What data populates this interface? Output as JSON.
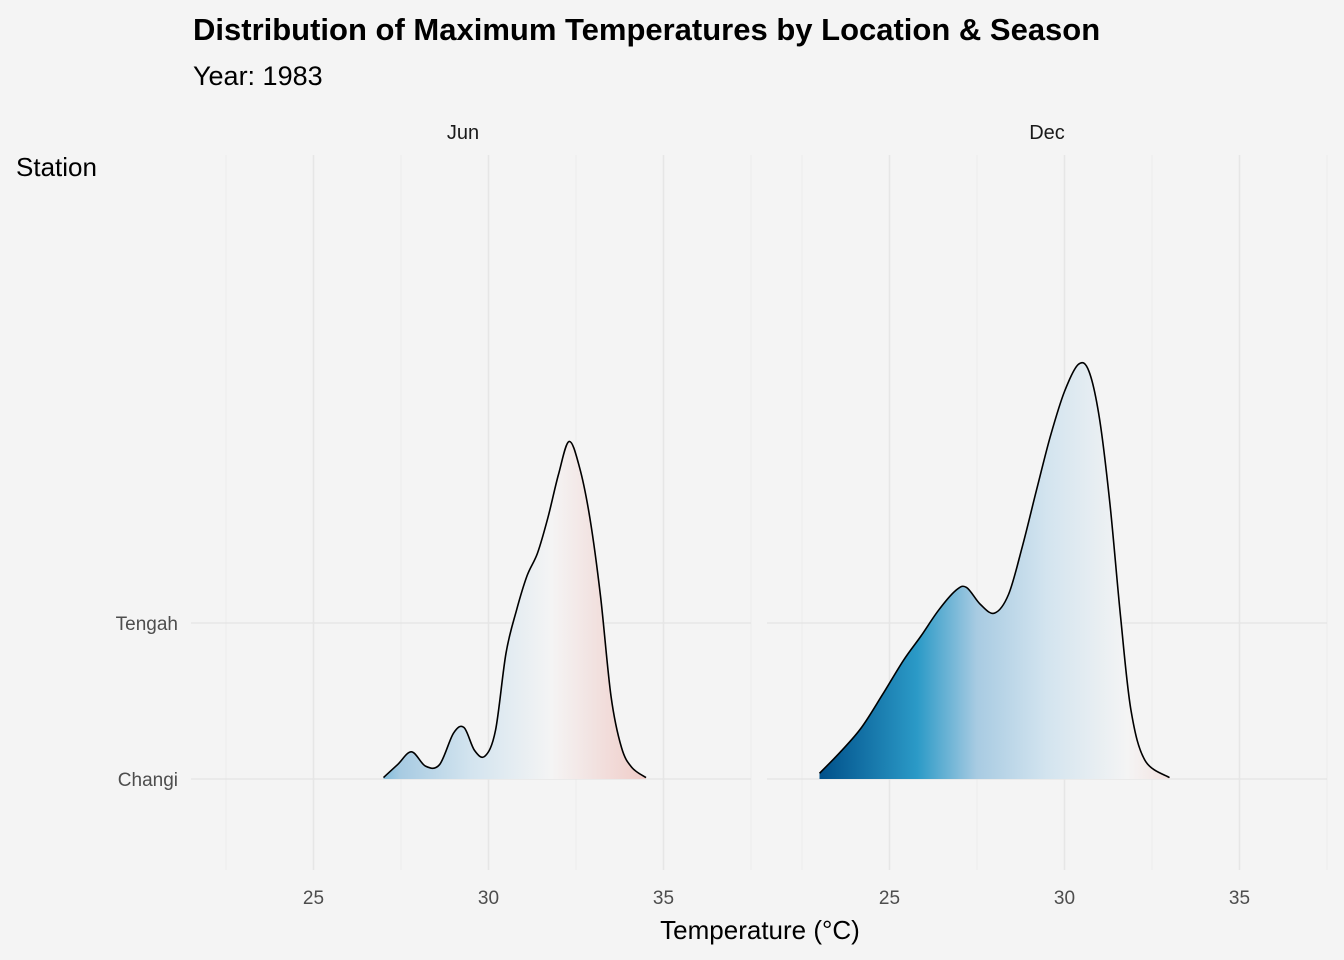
{
  "chart_data": {
    "type": "ridgeline",
    "title": "Distribution of Maximum Temperatures by Location & Season",
    "subtitle": "Year: 1983",
    "xlabel": "Temperature (°C)",
    "ylabel": "Station",
    "xlim": [
      21.5,
      37.5
    ],
    "x_ticks": [
      25,
      30,
      35
    ],
    "stations": [
      "Changi",
      "Tengah"
    ],
    "facets": [
      {
        "label": "Jun",
        "series": [
          {
            "station": "Changi",
            "x": [
              27.0,
              27.4,
              27.8,
              28.2,
              28.6,
              29.0,
              29.3,
              29.6,
              29.9,
              30.2,
              30.5,
              30.8,
              31.1,
              31.4,
              31.7,
              32.0,
              32.3,
              32.6,
              32.9,
              33.2,
              33.5,
              33.8,
              34.1,
              34.5
            ],
            "density": [
              0.01,
              0.1,
              0.19,
              0.09,
              0.1,
              0.32,
              0.36,
              0.2,
              0.16,
              0.34,
              0.88,
              1.18,
              1.42,
              1.58,
              1.83,
              2.13,
              2.36,
              2.18,
              1.82,
              1.28,
              0.58,
              0.22,
              0.08,
              0.01
            ]
          }
        ]
      },
      {
        "label": "Dec",
        "series": [
          {
            "station": "Changi",
            "x": [
              23.0,
              23.6,
              24.2,
              24.8,
              25.4,
              25.9,
              26.4,
              26.9,
              27.2,
              27.6,
              28.0,
              28.4,
              28.8,
              29.2,
              29.6,
              30.0,
              30.4,
              30.7,
              31.0,
              31.3,
              31.6,
              31.9,
              32.3,
              33.0
            ],
            "density": [
              0.04,
              0.19,
              0.36,
              0.59,
              0.83,
              1.0,
              1.18,
              1.32,
              1.34,
              1.22,
              1.16,
              1.29,
              1.63,
              2.02,
              2.4,
              2.71,
              2.9,
              2.85,
              2.52,
              1.92,
              1.14,
              0.48,
              0.13,
              0.01
            ]
          }
        ]
      }
    ],
    "fill_palette": {
      "low": "#00508a",
      "mid_low": "#2b9ac7",
      "light": "#a8cbe2",
      "mid": "#f4f4f4",
      "high": "#f0ccc8"
    }
  }
}
